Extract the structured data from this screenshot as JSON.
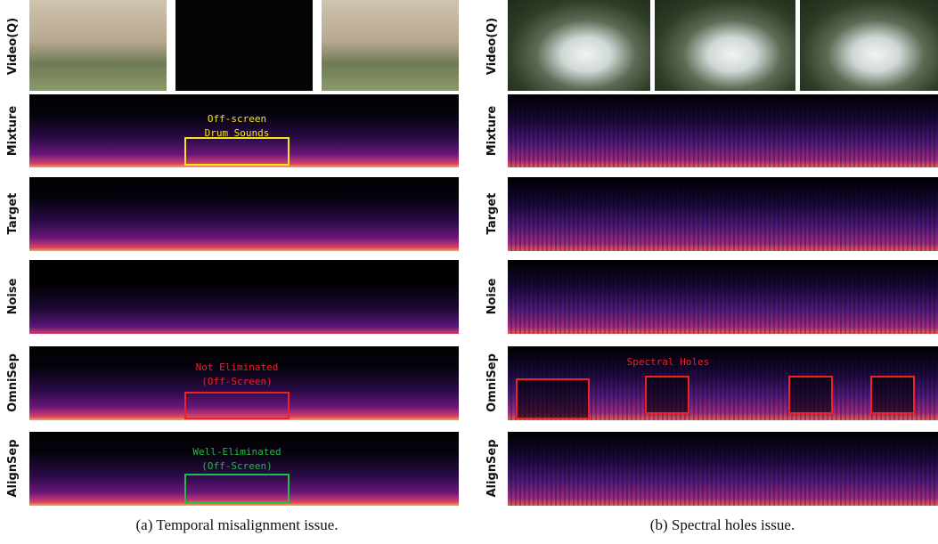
{
  "panels": [
    {
      "caption": "(a) Temporal misalignment issue.",
      "rows": [
        "Video(Q)",
        "Mixture",
        "Target",
        "Noise",
        "OmniSep",
        "AlignSep"
      ],
      "annotations": [
        [
          "Off-screen",
          "Drum Sounds"
        ],
        [
          "Not Eliminated",
          "(Off-Screen)"
        ],
        [
          "Well-Eliminated",
          "(Off-Screen)"
        ]
      ]
    },
    {
      "caption": "(b) Spectral holes issue.",
      "rows": [
        "Video(Q)",
        "Mixture",
        "Target",
        "Noise",
        "OmniSep",
        "AlignSep"
      ],
      "annotations": [
        [
          "Spectral Holes"
        ]
      ]
    }
  ]
}
